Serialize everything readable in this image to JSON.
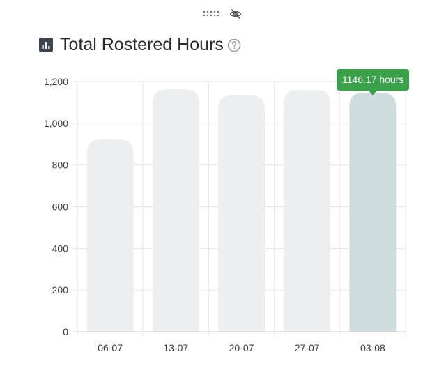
{
  "header": {
    "title": "Total Rostered Hours",
    "icon": "bar-chart-icon",
    "help_icon": "help-circle-icon"
  },
  "toolbar": {
    "drag_icon": "drag-handle-icon",
    "visibility_icon": "eye-off-icon"
  },
  "tooltip": {
    "text": "1146.17 hours",
    "category": "03-08",
    "color": "#3aa14a"
  },
  "chart_data": {
    "type": "bar",
    "categories": [
      "06-07",
      "13-07",
      "20-07",
      "27-07",
      "03-08"
    ],
    "values": [
      922,
      1162,
      1135,
      1160,
      1146.17
    ],
    "ylim": [
      0,
      1200
    ],
    "yticks": [
      0,
      200,
      400,
      600,
      800,
      1000,
      1200
    ],
    "ytick_labels": [
      "0",
      "200",
      "400",
      "600",
      "800",
      "1,000",
      "1,200"
    ],
    "grid": true,
    "highlighted": "03-08",
    "colors": {
      "bar": "#ecefef",
      "bar_highlight": "#cfdcde",
      "grid": "#e6e6e6"
    }
  }
}
